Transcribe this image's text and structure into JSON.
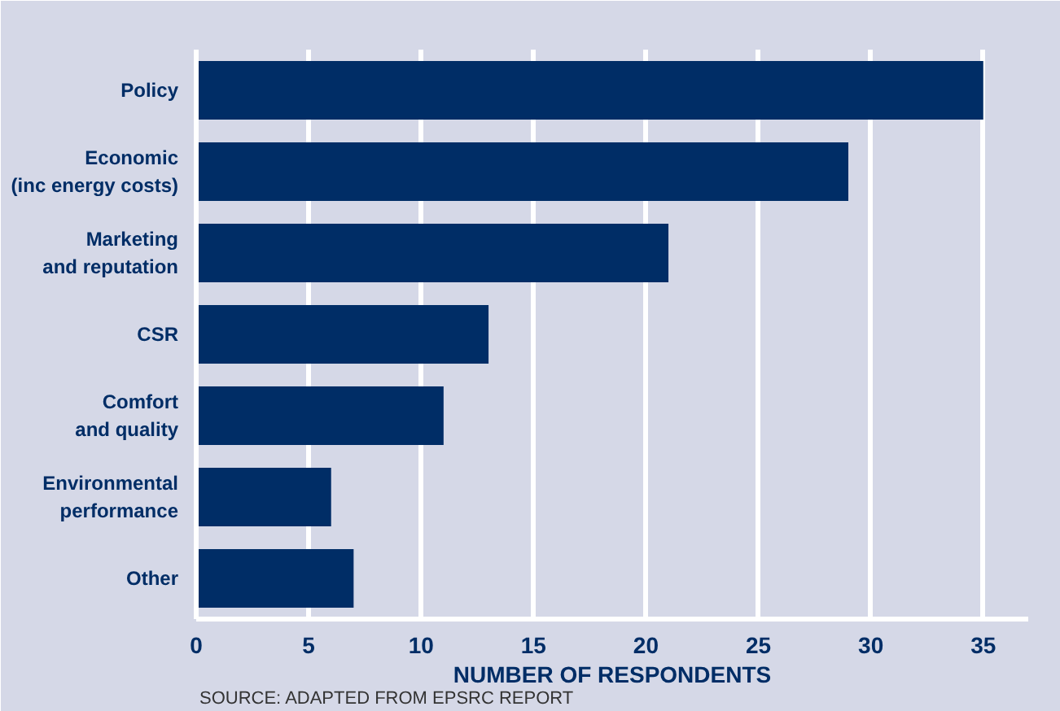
{
  "chart_data": {
    "type": "bar",
    "orientation": "horizontal",
    "xlabel": "NUMBER OF RESPONDENTS",
    "categories": [
      "Policy",
      "Economic\n(inc energy costs)",
      "Marketing\nand reputation",
      "CSR",
      "Comfort\nand quality",
      "Environmental\nperformance",
      "Other"
    ],
    "values": [
      35,
      29,
      21,
      13,
      11,
      6,
      7
    ],
    "color": "#002d66",
    "xlim": [
      0,
      37
    ],
    "xticks": [
      0,
      5,
      10,
      15,
      20,
      25,
      30,
      35
    ],
    "grid": "x",
    "annotations": [
      "SOURCE: ADAPTED FROM EPSRC REPORT"
    ]
  }
}
